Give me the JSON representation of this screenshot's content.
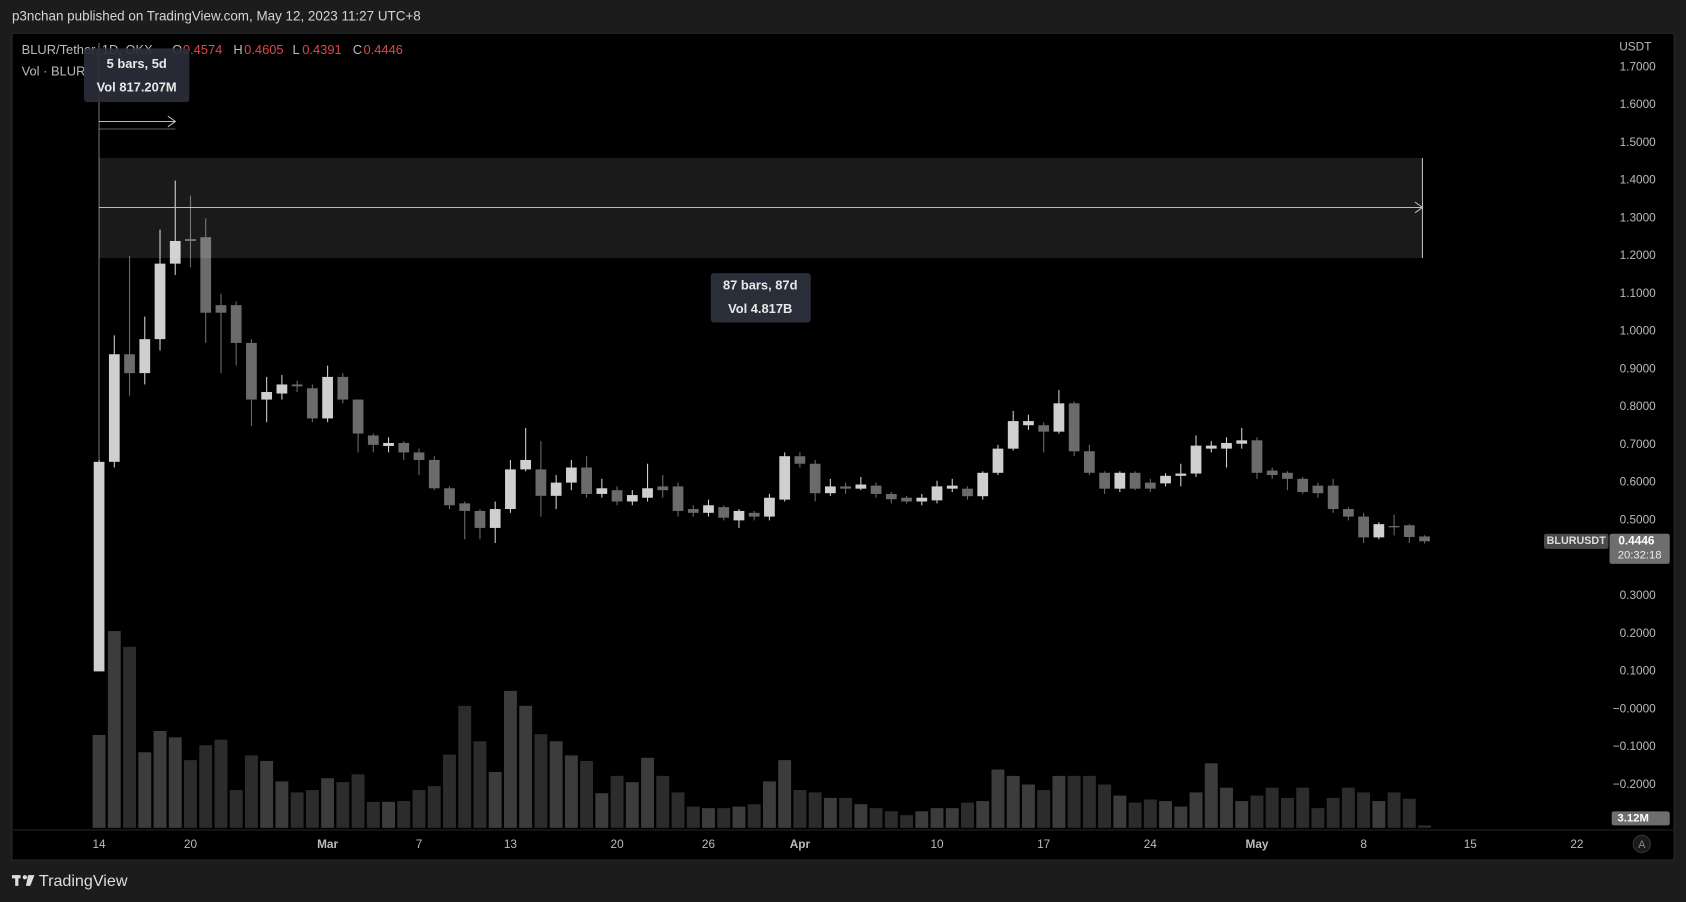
{
  "header": "p3nchan published on TradingView.com, May 12, 2023 11:27 UTC+8",
  "footer": "TradingView",
  "chart_data": {
    "type": "candlestick",
    "symbol": "BLUR/Tether, 1D, OKX",
    "ohlc_labels": [
      "O",
      "H",
      "L",
      "C"
    ],
    "x": [
      "2023-02-14",
      "2023-02-15",
      "2023-02-16",
      "2023-02-17",
      "2023-02-18",
      "2023-02-19",
      "2023-02-20",
      "2023-02-21",
      "2023-02-22",
      "2023-02-23",
      "2023-02-24",
      "2023-02-25",
      "2023-02-26",
      "2023-02-27",
      "2023-02-28",
      "2023-03-01",
      "2023-03-02",
      "2023-03-03",
      "2023-03-04",
      "2023-03-05",
      "2023-03-06",
      "2023-03-07",
      "2023-03-08",
      "2023-03-09",
      "2023-03-10",
      "2023-03-11",
      "2023-03-12",
      "2023-03-13",
      "2023-03-14",
      "2023-03-15",
      "2023-03-16",
      "2023-03-17",
      "2023-03-18",
      "2023-03-19",
      "2023-03-20",
      "2023-03-21",
      "2023-03-22",
      "2023-03-23",
      "2023-03-24",
      "2023-03-25",
      "2023-03-26",
      "2023-03-27",
      "2023-03-28",
      "2023-03-29",
      "2023-03-30",
      "2023-03-31",
      "2023-04-01",
      "2023-04-02",
      "2023-04-03",
      "2023-04-04",
      "2023-04-05",
      "2023-04-06",
      "2023-04-07",
      "2023-04-08",
      "2023-04-09",
      "2023-04-10",
      "2023-04-11",
      "2023-04-12",
      "2023-04-13",
      "2023-04-14",
      "2023-04-15",
      "2023-04-16",
      "2023-04-17",
      "2023-04-18",
      "2023-04-19",
      "2023-04-20",
      "2023-04-21",
      "2023-04-22",
      "2023-04-23",
      "2023-04-24",
      "2023-04-25",
      "2023-04-26",
      "2023-04-27",
      "2023-04-28",
      "2023-04-29",
      "2023-04-30",
      "2023-05-01",
      "2023-05-02",
      "2023-05-03",
      "2023-05-04",
      "2023-05-05",
      "2023-05-06",
      "2023-05-07",
      "2023-05-08",
      "2023-05-09",
      "2023-05-10",
      "2023-05-11",
      "2023-05-12"
    ],
    "open": [
      0.1,
      0.655,
      0.94,
      0.89,
      0.98,
      1.18,
      1.245,
      1.25,
      1.07,
      1.07,
      0.97,
      0.82,
      0.836,
      0.86,
      0.85,
      0.77,
      0.88,
      0.82,
      0.725,
      0.697,
      0.705,
      0.68,
      0.66,
      0.585,
      0.545,
      0.525,
      0.48,
      0.53,
      0.635,
      0.635,
      0.565,
      0.6,
      0.64,
      0.57,
      0.58,
      0.55,
      0.56,
      0.59,
      0.59,
      0.53,
      0.52,
      0.535,
      0.5,
      0.52,
      0.51,
      0.555,
      0.67,
      0.65,
      0.572,
      0.59,
      0.584,
      0.592,
      0.57,
      0.56,
      0.55,
      0.553,
      0.584,
      0.584,
      0.564,
      0.626,
      0.69,
      0.752,
      0.752,
      0.735,
      0.81,
      0.683,
      0.626,
      0.584,
      0.626,
      0.6,
      0.598,
      0.618,
      0.624,
      0.69,
      0.69,
      0.703,
      0.712,
      0.632,
      0.626,
      0.61,
      0.592,
      0.592,
      0.53,
      0.51,
      0.455,
      0.485,
      0.487,
      0.4574
    ],
    "high": [
      0.66,
      0.99,
      1.2,
      1.04,
      1.27,
      1.4,
      1.36,
      1.3,
      1.1,
      1.08,
      0.98,
      0.88,
      0.885,
      0.87,
      0.86,
      0.91,
      0.89,
      0.82,
      0.73,
      0.72,
      0.71,
      0.69,
      0.67,
      0.59,
      0.55,
      0.53,
      0.55,
      0.66,
      0.745,
      0.71,
      0.62,
      0.66,
      0.67,
      0.61,
      0.59,
      0.58,
      0.65,
      0.62,
      0.6,
      0.54,
      0.555,
      0.54,
      0.53,
      0.525,
      0.57,
      0.68,
      0.68,
      0.66,
      0.61,
      0.6,
      0.615,
      0.6,
      0.575,
      0.565,
      0.57,
      0.605,
      0.61,
      0.59,
      0.63,
      0.7,
      0.79,
      0.78,
      0.76,
      0.845,
      0.815,
      0.7,
      0.63,
      0.63,
      0.63,
      0.61,
      0.625,
      0.65,
      0.725,
      0.71,
      0.72,
      0.745,
      0.72,
      0.64,
      0.63,
      0.615,
      0.6,
      0.61,
      0.535,
      0.52,
      0.495,
      0.515,
      0.49,
      0.4605
    ],
    "low": [
      0.1,
      0.64,
      0.83,
      0.86,
      0.95,
      1.15,
      1.17,
      0.97,
      0.89,
      0.91,
      0.75,
      0.76,
      0.82,
      0.84,
      0.76,
      0.76,
      0.81,
      0.68,
      0.68,
      0.68,
      0.66,
      0.62,
      0.58,
      0.53,
      0.45,
      0.45,
      0.44,
      0.52,
      0.63,
      0.51,
      0.53,
      0.58,
      0.56,
      0.56,
      0.54,
      0.54,
      0.55,
      0.56,
      0.51,
      0.51,
      0.51,
      0.5,
      0.48,
      0.5,
      0.5,
      0.55,
      0.64,
      0.55,
      0.565,
      0.57,
      0.58,
      0.56,
      0.545,
      0.545,
      0.54,
      0.545,
      0.575,
      0.555,
      0.555,
      0.62,
      0.685,
      0.74,
      0.68,
      0.73,
      0.67,
      0.62,
      0.57,
      0.575,
      0.58,
      0.575,
      0.59,
      0.59,
      0.615,
      0.68,
      0.64,
      0.69,
      0.61,
      0.61,
      0.58,
      0.57,
      0.56,
      0.52,
      0.5,
      0.44,
      0.45,
      0.46,
      0.44,
      0.4391
    ],
    "close": [
      0.655,
      0.94,
      0.89,
      0.98,
      1.18,
      1.24,
      1.24,
      1.05,
      1.05,
      0.97,
      0.82,
      0.84,
      0.86,
      0.855,
      0.77,
      0.88,
      0.82,
      0.73,
      0.7,
      0.705,
      0.68,
      0.66,
      0.585,
      0.54,
      0.525,
      0.48,
      0.53,
      0.635,
      0.66,
      0.565,
      0.6,
      0.64,
      0.57,
      0.585,
      0.55,
      0.567,
      0.585,
      0.58,
      0.525,
      0.52,
      0.54,
      0.507,
      0.525,
      0.51,
      0.56,
      0.67,
      0.65,
      0.572,
      0.59,
      0.584,
      0.595,
      0.57,
      0.556,
      0.55,
      0.56,
      0.59,
      0.592,
      0.564,
      0.626,
      0.69,
      0.763,
      0.763,
      0.735,
      0.81,
      0.683,
      0.626,
      0.584,
      0.626,
      0.584,
      0.584,
      0.618,
      0.624,
      0.698,
      0.698,
      0.705,
      0.712,
      0.626,
      0.62,
      0.61,
      0.575,
      0.572,
      0.53,
      0.51,
      0.455,
      0.49,
      0.484,
      0.456,
      0.4446
    ],
    "colors": {
      "up": "#cfcfcf",
      "down": "#6b6b6b",
      "volume_up": "#3c3c3c",
      "volume_down": "#2c2c2c"
    },
    "volume": {
      "name": "Vol · BLUR",
      "values": [
        118,
        250,
        230,
        96,
        123,
        115,
        86,
        105,
        112,
        48,
        92,
        85,
        59,
        45,
        48,
        63,
        58,
        68,
        33,
        33,
        34,
        48,
        53,
        93,
        155,
        110,
        71,
        174,
        155,
        119,
        110,
        92,
        85,
        44,
        66,
        58,
        89,
        66,
        45,
        27,
        25,
        25,
        27,
        30,
        59,
        86,
        48,
        45,
        38,
        38,
        30,
        25,
        21,
        16,
        21,
        25,
        25,
        32,
        34,
        74,
        66,
        55,
        48,
        66,
        66,
        66,
        55,
        41,
        32,
        36,
        34,
        27,
        45,
        82,
        51,
        34,
        41,
        51,
        38,
        51,
        25,
        38,
        51,
        45,
        34,
        45,
        37,
        3.12
      ],
      "value_labels": [
        null,
        null,
        null,
        null,
        null,
        null,
        null,
        null,
        null,
        null,
        null,
        null,
        null,
        null,
        null,
        null,
        null,
        null,
        null,
        null,
        null,
        null,
        null,
        null,
        null,
        null,
        null,
        null,
        null,
        null,
        null,
        null,
        null,
        null,
        null,
        null,
        null,
        null,
        null,
        null,
        null,
        null,
        null,
        null,
        null,
        null,
        null,
        null,
        null,
        null,
        null,
        null,
        null,
        null,
        null,
        null,
        null,
        null,
        null,
        null,
        null,
        null,
        null,
        null,
        null,
        null,
        null,
        null,
        null,
        null,
        null,
        null,
        null,
        null,
        null,
        null,
        null,
        null,
        null,
        null,
        null,
        null,
        null,
        null,
        null,
        null,
        null,
        "3.12M"
      ]
    },
    "currency": "USDT",
    "price_label": "BLURUSDT",
    "countdown": "20:32:18",
    "ylim": [
      -0.32,
      1.79
    ],
    "yticks": [
      {
        "value": 1.7,
        "label": "1.7000"
      },
      {
        "value": 1.6,
        "label": "1.6000"
      },
      {
        "value": 1.5,
        "label": "1.5000"
      },
      {
        "value": 1.4,
        "label": "1.4000"
      },
      {
        "value": 1.3,
        "label": "1.3000"
      },
      {
        "value": 1.2,
        "label": "1.2000"
      },
      {
        "value": 1.1,
        "label": "1.1000"
      },
      {
        "value": 1.0,
        "label": "1.0000"
      },
      {
        "value": 0.9,
        "label": "0.9000"
      },
      {
        "value": 0.8,
        "label": "0.8000"
      },
      {
        "value": 0.7,
        "label": "0.7000"
      },
      {
        "value": 0.6,
        "label": "0.6000"
      },
      {
        "value": 0.5,
        "label": "0.5000"
      },
      {
        "value": 0.3,
        "label": "0.3000"
      },
      {
        "value": 0.2,
        "label": "0.2000"
      },
      {
        "value": 0.1,
        "label": "0.1000"
      },
      {
        "value": 0,
        "label": "−0.0000"
      },
      {
        "value": -0.1,
        "label": "−0.1000"
      },
      {
        "value": -0.2,
        "label": "−0.2000"
      }
    ],
    "xlim": [
      "2023-02-08",
      "2023-05-24"
    ],
    "xticks": [
      {
        "value": "2023-02-14",
        "label": "14"
      },
      {
        "value": "2023-02-20",
        "label": "20"
      },
      {
        "value": "2023-03-01",
        "label": "Mar"
      },
      {
        "value": "2023-03-07",
        "label": "7"
      },
      {
        "value": "2023-03-13",
        "label": "13"
      },
      {
        "value": "2023-03-20",
        "label": "20"
      },
      {
        "value": "2023-03-26",
        "label": "26"
      },
      {
        "value": "2023-04-01",
        "label": "Apr"
      },
      {
        "value": "2023-04-10",
        "label": "10"
      },
      {
        "value": "2023-04-17",
        "label": "17"
      },
      {
        "value": "2023-04-24",
        "label": "24"
      },
      {
        "value": "2023-05-01",
        "label": "May"
      },
      {
        "value": "2023-05-08",
        "label": "8"
      },
      {
        "value": "2023-05-15",
        "label": "15"
      },
      {
        "value": "2023-05-22",
        "label": "22"
      }
    ],
    "measurements": [
      {
        "label": "5 bars, 5d",
        "volume": "Vol 817.207M"
      },
      {
        "label": "87 bars, 87d",
        "volume": "Vol 4.817B"
      }
    ],
    "auto_scale_button": "A"
  }
}
